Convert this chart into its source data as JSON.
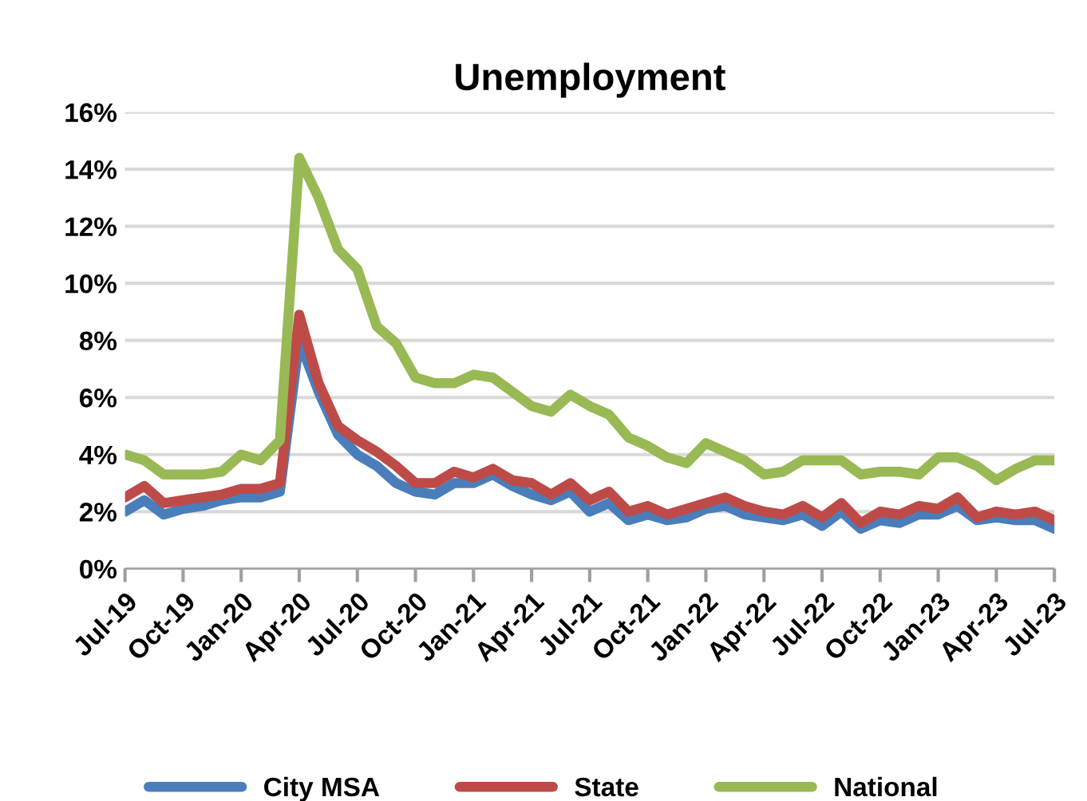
{
  "chart_data": {
    "type": "line",
    "title": "Unemployment",
    "categories": [
      "Jul-19",
      null,
      null,
      "Oct-19",
      null,
      null,
      "Jan-20",
      null,
      null,
      "Apr-20",
      null,
      null,
      "Jul-20",
      null,
      null,
      "Oct-20",
      null,
      null,
      "Jan-21",
      null,
      null,
      "Apr-21",
      null,
      null,
      "Jul-21",
      null,
      null,
      "Oct-21",
      null,
      null,
      "Jan-22",
      null,
      null,
      "Apr-22",
      null,
      null,
      "Jul-22",
      null,
      null,
      "Oct-22",
      null,
      null,
      "Jan-23",
      null,
      null,
      "Apr-23",
      null,
      null,
      "Jul-23"
    ],
    "series": [
      {
        "name": "City MSA",
        "color": "#4a7ebb",
        "values": [
          2.0,
          2.4,
          1.9,
          2.1,
          2.2,
          2.4,
          2.5,
          2.5,
          2.7,
          8.0,
          6.2,
          4.7,
          4.0,
          3.6,
          3.0,
          2.7,
          2.6,
          3.0,
          3.0,
          3.3,
          2.9,
          2.6,
          2.4,
          2.7,
          2.0,
          2.3,
          1.7,
          1.9,
          1.7,
          1.8,
          2.1,
          2.2,
          1.9,
          1.8,
          1.7,
          1.9,
          1.5,
          2.0,
          1.4,
          1.7,
          1.6,
          1.9,
          1.9,
          2.2,
          1.7,
          1.8,
          1.7,
          1.7,
          1.4
        ]
      },
      {
        "name": "State",
        "color": "#be4b48",
        "values": [
          2.5,
          2.9,
          2.3,
          2.4,
          2.5,
          2.6,
          2.8,
          2.8,
          3.0,
          8.9,
          6.5,
          5.0,
          4.5,
          4.1,
          3.6,
          3.0,
          3.0,
          3.4,
          3.2,
          3.5,
          3.1,
          3.0,
          2.6,
          3.0,
          2.4,
          2.7,
          2.0,
          2.2,
          1.9,
          2.1,
          2.3,
          2.5,
          2.2,
          2.0,
          1.9,
          2.2,
          1.8,
          2.3,
          1.6,
          2.0,
          1.9,
          2.2,
          2.1,
          2.5,
          1.8,
          2.0,
          1.9,
          2.0,
          1.7
        ]
      },
      {
        "name": "National",
        "color": "#98b954",
        "values": [
          4.0,
          3.8,
          3.3,
          3.3,
          3.3,
          3.4,
          4.0,
          3.8,
          4.5,
          14.4,
          13.0,
          11.2,
          10.5,
          8.5,
          7.9,
          6.7,
          6.5,
          6.5,
          6.8,
          6.7,
          6.2,
          5.7,
          5.5,
          6.1,
          5.7,
          5.4,
          4.6,
          4.3,
          3.9,
          3.7,
          4.4,
          4.1,
          3.8,
          3.3,
          3.4,
          3.8,
          3.8,
          3.8,
          3.3,
          3.4,
          3.4,
          3.3,
          3.9,
          3.9,
          3.6,
          3.1,
          3.5,
          3.8,
          3.8
        ]
      }
    ],
    "ylim": [
      0,
      16
    ],
    "yticks": [
      {
        "value": 0,
        "label": "0%"
      },
      {
        "value": 2,
        "label": "2%"
      },
      {
        "value": 4,
        "label": "4%"
      },
      {
        "value": 6,
        "label": "6%"
      },
      {
        "value": 8,
        "label": "8%"
      },
      {
        "value": 10,
        "label": "10%"
      },
      {
        "value": 12,
        "label": "12%"
      },
      {
        "value": 14,
        "label": "14%"
      },
      {
        "value": 16,
        "label": "16%"
      }
    ],
    "grid": "y",
    "legend": "bottom",
    "marker": "none",
    "line_style": "solid"
  }
}
